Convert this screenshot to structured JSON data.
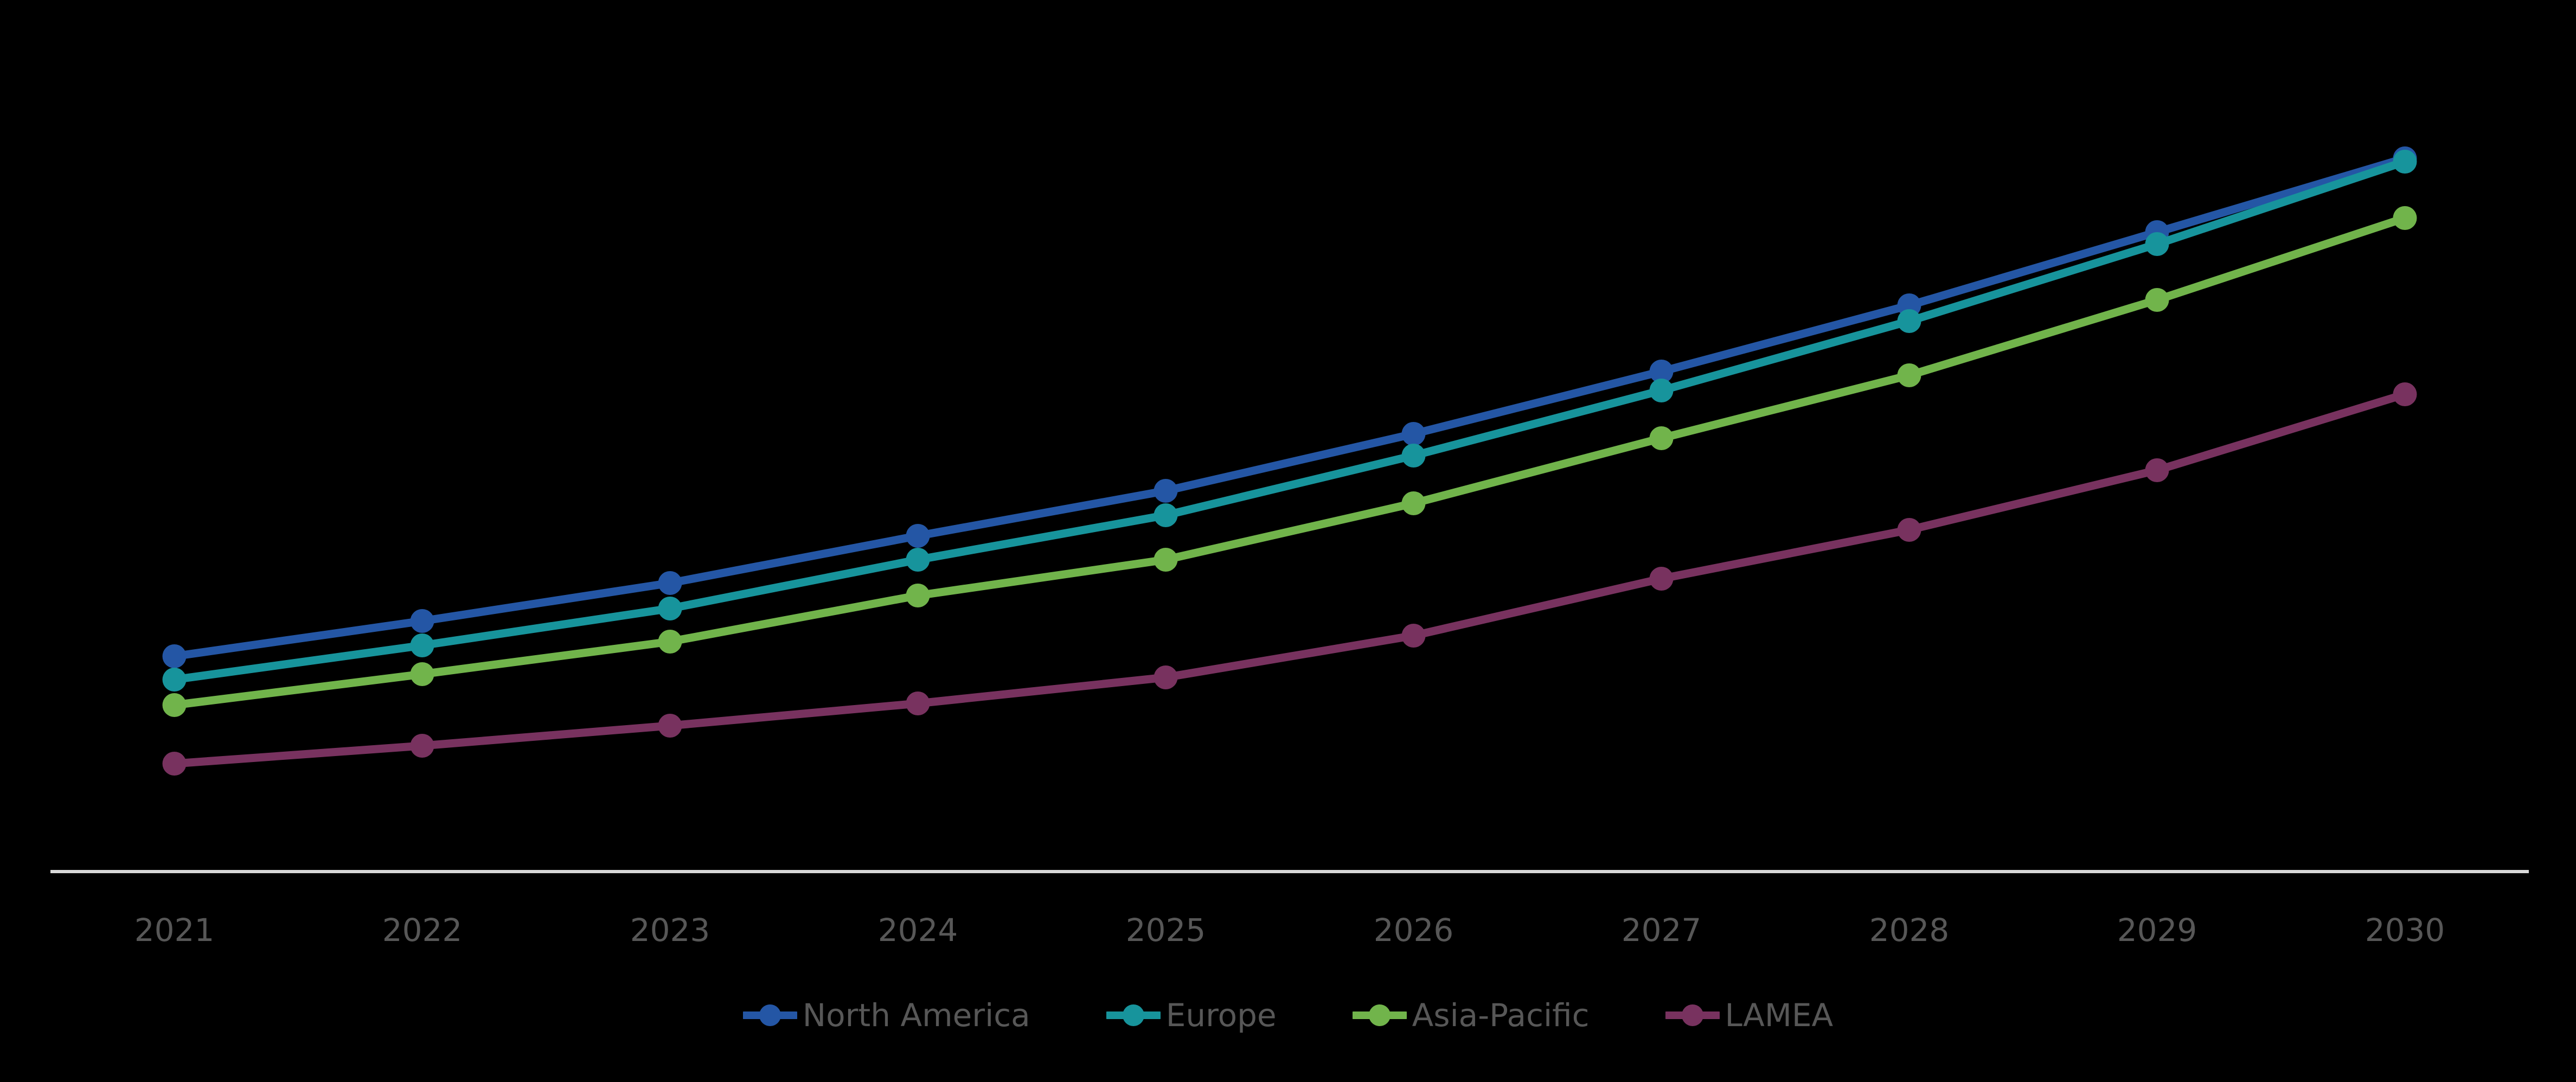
{
  "chart_data": {
    "type": "line",
    "title": "",
    "xlabel": "",
    "ylabel": "",
    "categories": [
      "2021",
      "2022",
      "2023",
      "2024",
      "2025",
      "2026",
      "2027",
      "2028",
      "2029",
      "2030"
    ],
    "series": [
      {
        "name": "North America",
        "color": "#2456A5",
        "values": [
          39.7,
          46.2,
          53.2,
          61.9,
          70.2,
          80.7,
          92.2,
          104.4,
          117.9,
          131.5
        ]
      },
      {
        "name": "Europe",
        "color": "#17949C",
        "values": [
          35.4,
          41.7,
          48.5,
          57.5,
          65.7,
          76.7,
          88.7,
          101.5,
          115.7,
          130.9
        ]
      },
      {
        "name": "Asia-Pacific",
        "color": "#71B44B",
        "values": [
          30.7,
          36.4,
          42.4,
          50.9,
          57.5,
          67.9,
          79.9,
          91.5,
          105.4,
          120.5
        ]
      },
      {
        "name": "LAMEA",
        "color": "#78325F",
        "values": [
          19.9,
          23.2,
          26.9,
          31.0,
          35.8,
          43.5,
          54.0,
          63.0,
          74.0,
          88.0
        ]
      }
    ],
    "ylim": [
      0,
      160
    ],
    "y_axis_visible": false,
    "grid": false,
    "legend_position": "bottom",
    "marker": "circle"
  },
  "style": {
    "background": "#000000",
    "axis_line_color": "#D9D9D9",
    "label_color": "#575757"
  }
}
